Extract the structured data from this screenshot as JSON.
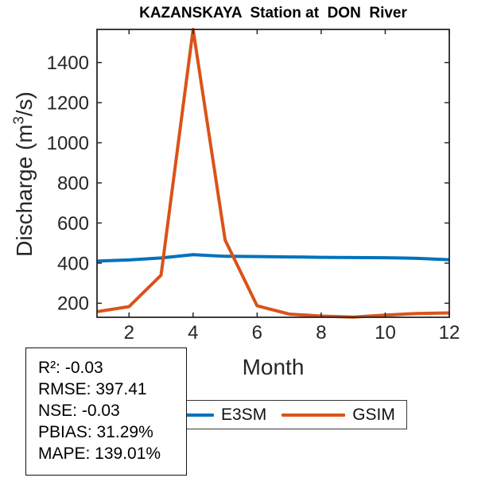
{
  "title": "KAZANSKAYA  Station at  DON  River",
  "chart_data": {
    "type": "line",
    "x": [
      1,
      2,
      3,
      4,
      5,
      6,
      7,
      8,
      9,
      10,
      11,
      12
    ],
    "series": [
      {
        "name": "E3SM",
        "color": "#0072BD",
        "values": [
          410,
          416,
          426,
          442,
          434,
          433,
          431,
          429,
          428,
          427,
          424,
          417
        ]
      },
      {
        "name": "GSIM",
        "color": "#D95319",
        "values": [
          158,
          183,
          340,
          1565,
          515,
          187,
          146,
          136,
          131,
          141,
          149,
          152
        ]
      }
    ],
    "title": "KAZANSKAYA  Station at  DON  River",
    "xlabel": "Month",
    "ylabel": "Discharge (m³/s)",
    "ylabel_parts": {
      "pre": "Discharge (m",
      "sup": "3",
      "post": "/s)"
    },
    "xticks": [
      2,
      4,
      6,
      8,
      10,
      12
    ],
    "yticks": [
      200,
      400,
      600,
      800,
      1000,
      1200,
      1400
    ],
    "xlim": [
      1,
      12
    ],
    "ylim": [
      130,
      1565
    ],
    "grid": false,
    "legend_position": "below axis, horizontal",
    "axis_color": "#262626"
  },
  "legend": {
    "items": [
      {
        "label": "E3SM",
        "color": "#0072BD"
      },
      {
        "label": "GSIM",
        "color": "#D95319"
      }
    ]
  },
  "stats": {
    "lines": [
      "R²: -0.03",
      "RMSE: 397.41",
      "NSE: -0.03",
      "PBIAS: 31.29%",
      "MAPE: 139.01%"
    ]
  }
}
